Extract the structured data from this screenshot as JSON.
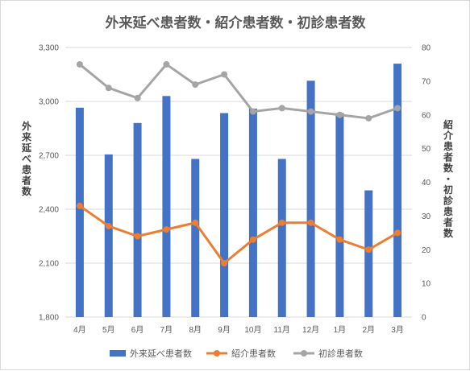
{
  "chart_data": {
    "type": "bar+line",
    "title": "外来延べ患者数・紹介患者数・初診患者数",
    "categories": [
      "4月",
      "5月",
      "6月",
      "7月",
      "8月",
      "9月",
      "10月",
      "11月",
      "12月",
      "1月",
      "2月",
      "3月"
    ],
    "y_left": {
      "label": "外来延べ患者数",
      "min": 1800,
      "max": 3300,
      "step": 300,
      "tick_labels": [
        "1,800",
        "2,100",
        "2,400",
        "2,700",
        "3,000",
        "3,300"
      ]
    },
    "y_right": {
      "label": "紹介患者数・初診患者数",
      "min": 0,
      "max": 80,
      "step": 10,
      "tick_labels": [
        "0",
        "10",
        "20",
        "30",
        "40",
        "50",
        "60",
        "70",
        "80"
      ]
    },
    "grid": true,
    "legend_position": "bottom",
    "series": [
      {
        "name": "外来延べ患者数",
        "type": "bar",
        "axis": "left",
        "color": "#4472c4",
        "values": [
          2965,
          2705,
          2880,
          3030,
          2680,
          2935,
          2960,
          2680,
          3115,
          2935,
          2505,
          3210
        ]
      },
      {
        "name": "紹介患者数",
        "type": "line",
        "axis": "right",
        "color": "#ed7d31",
        "values": [
          33,
          27,
          24,
          26,
          28,
          16,
          23,
          28,
          28,
          23,
          20,
          25
        ]
      },
      {
        "name": "初診患者数",
        "type": "line",
        "axis": "right",
        "color": "#a5a5a5",
        "values": [
          75,
          68,
          65,
          75,
          69,
          72,
          61,
          62,
          61,
          60,
          59,
          62
        ]
      }
    ]
  }
}
